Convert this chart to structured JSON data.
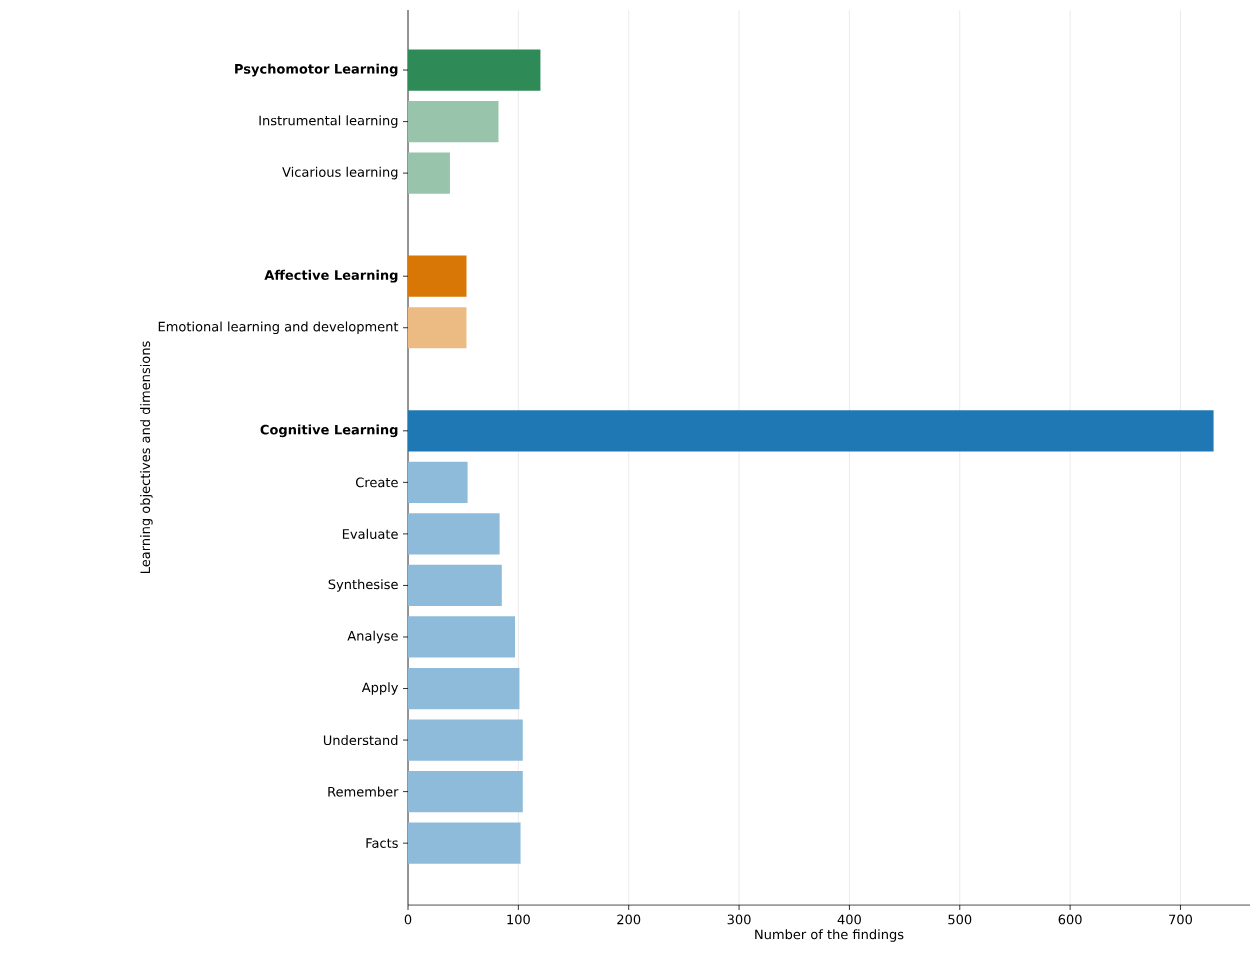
{
  "chart_data": {
    "type": "bar",
    "orientation": "horizontal",
    "xlabel": "Number of the findings",
    "ylabel": "Learning objectives and dimensions",
    "categories": [
      "**Psychomotor Learning**",
      "Instrumental learning",
      "Vicarious learning",
      null,
      "**Affective Learning**",
      "Emotional learning and development",
      null,
      "**Cognitive Learning**",
      "Create",
      "Evaluate",
      "Synthesise",
      "Analyse",
      "Apply",
      "Understand",
      "Remember",
      "Facts"
    ],
    "values": [
      120,
      82,
      38,
      null,
      53,
      53,
      null,
      730,
      54,
      83,
      85,
      97,
      101,
      104,
      104,
      102
    ],
    "colors": [
      "#2e8b57",
      "#97c4ab",
      "#97c4ab",
      null,
      "#d97706",
      "#ecbb84",
      null,
      "#1f77b4",
      "#8fbbdb",
      "#8fbbdb",
      "#8fbbdb",
      "#8fbbdb",
      "#8fbbdb",
      "#8fbbdb",
      "#8fbbdb",
      "#8fbbdb"
    ],
    "xlim": [
      0,
      763
    ],
    "xticks": [
      0,
      100,
      200,
      300,
      400,
      500,
      600,
      700
    ],
    "grid": "x"
  }
}
